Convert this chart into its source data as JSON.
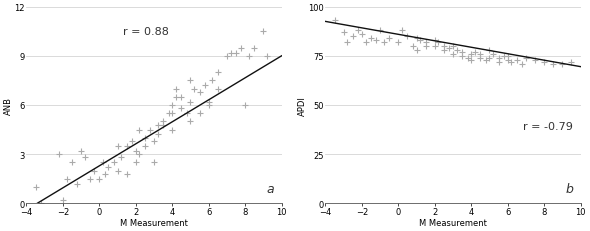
{
  "plot_a": {
    "title": "r = 0.88",
    "xlabel": "M Measurement",
    "ylabel": "ANB",
    "xlim": [
      -4,
      10
    ],
    "ylim": [
      0,
      12
    ],
    "yticks": [
      0,
      3,
      6,
      9,
      12
    ],
    "xticks": [
      -4,
      -2,
      0,
      2,
      4,
      6,
      8,
      10
    ],
    "label": "a",
    "line_x": [
      -4,
      10
    ],
    "line_y": [
      -0.4,
      9.0
    ],
    "scatter_x": [
      -3.5,
      -3.2,
      -2.2,
      -2.0,
      -1.8,
      -1.5,
      -1.2,
      -1.0,
      -0.8,
      -0.5,
      -0.3,
      0.0,
      0.2,
      0.3,
      0.5,
      0.8,
      1.0,
      1.0,
      1.2,
      1.5,
      1.5,
      1.8,
      2.0,
      2.0,
      2.2,
      2.2,
      2.5,
      2.5,
      2.8,
      3.0,
      3.0,
      3.2,
      3.2,
      3.5,
      3.5,
      3.8,
      4.0,
      4.0,
      4.0,
      4.2,
      4.2,
      4.5,
      4.5,
      4.8,
      5.0,
      5.0,
      5.0,
      5.2,
      5.5,
      5.5,
      5.8,
      6.0,
      6.0,
      6.2,
      6.5,
      6.5,
      7.0,
      7.2,
      7.5,
      7.8,
      8.0,
      8.2,
      8.5,
      9.0,
      9.2
    ],
    "scatter_y": [
      1.0,
      0.0,
      3.0,
      0.2,
      1.5,
      2.5,
      1.2,
      3.2,
      2.8,
      1.5,
      2.0,
      1.5,
      2.5,
      1.8,
      2.2,
      2.5,
      3.5,
      2.0,
      2.8,
      3.5,
      1.8,
      3.8,
      3.2,
      2.5,
      4.5,
      3.0,
      4.0,
      3.5,
      4.5,
      3.8,
      2.5,
      4.8,
      4.2,
      5.0,
      4.8,
      5.5,
      6.0,
      5.5,
      4.5,
      7.0,
      6.5,
      6.5,
      5.8,
      5.5,
      5.0,
      6.2,
      7.5,
      7.0,
      6.8,
      5.5,
      7.2,
      6.0,
      6.2,
      7.5,
      7.0,
      8.0,
      9.0,
      9.2,
      9.2,
      9.5,
      6.0,
      9.0,
      9.5,
      10.5,
      9.0
    ]
  },
  "plot_b": {
    "title": "r = -0.79",
    "xlabel": "M Measurement",
    "ylabel": "APDI",
    "xlim": [
      -4,
      10
    ],
    "ylim": [
      0,
      100
    ],
    "yticks": [
      0,
      25,
      50,
      75,
      100
    ],
    "xticks": [
      -4,
      -2,
      0,
      2,
      4,
      6,
      8,
      10
    ],
    "label": "b",
    "line_x": [
      -4,
      10
    ],
    "line_y": [
      92.5,
      69.5
    ],
    "scatter_x": [
      -3.5,
      -3.0,
      -2.8,
      -2.5,
      -2.2,
      -2.0,
      -1.8,
      -1.5,
      -1.2,
      -1.0,
      -0.8,
      -0.5,
      0.0,
      0.2,
      0.5,
      0.8,
      1.0,
      1.0,
      1.2,
      1.5,
      1.5,
      2.0,
      2.0,
      2.2,
      2.5,
      2.5,
      2.8,
      3.0,
      3.0,
      3.2,
      3.5,
      3.5,
      3.8,
      4.0,
      4.0,
      4.2,
      4.5,
      4.5,
      4.8,
      5.0,
      5.0,
      5.2,
      5.5,
      5.5,
      5.8,
      6.0,
      6.0,
      6.2,
      6.5,
      6.8,
      7.0,
      7.5,
      8.0,
      8.5,
      9.0,
      9.5
    ],
    "scatter_y": [
      93.0,
      87.0,
      82.0,
      85.0,
      88.0,
      86.0,
      82.0,
      84.0,
      83.0,
      88.0,
      82.0,
      84.0,
      82.0,
      88.0,
      85.0,
      80.0,
      84.0,
      78.0,
      83.0,
      80.0,
      82.0,
      80.0,
      83.0,
      82.0,
      78.0,
      80.0,
      79.0,
      80.0,
      76.0,
      78.0,
      77.0,
      75.0,
      74.0,
      76.0,
      73.0,
      77.0,
      76.0,
      74.0,
      73.0,
      78.0,
      74.0,
      76.0,
      74.0,
      72.0,
      75.0,
      73.0,
      75.0,
      72.0,
      73.0,
      71.0,
      74.0,
      73.0,
      72.0,
      71.0,
      71.0,
      72.0
    ]
  },
  "marker_color": "#aaaaaa",
  "line_color": "#111111",
  "bg_color": "#ffffff",
  "marker_size": 22,
  "marker_linewidth": 0.8,
  "font_size_label": 6,
  "font_size_annot": 8,
  "font_size_tick": 6,
  "font_size_panel": 9
}
